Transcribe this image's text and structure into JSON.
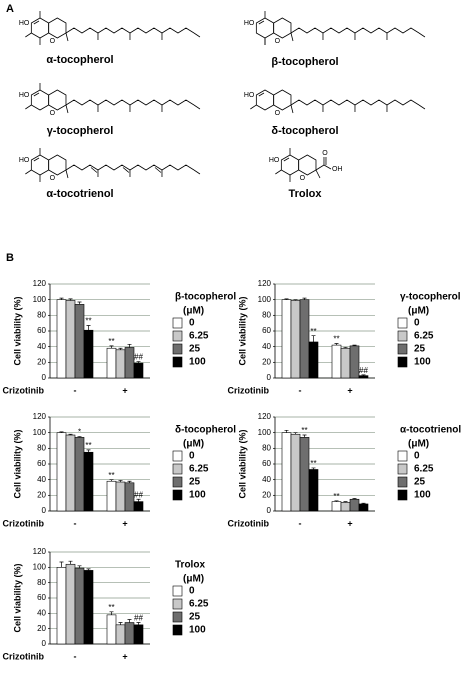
{
  "panel_labels": [
    "A",
    "B"
  ],
  "compounds": [
    {
      "label": "α-tocopherol",
      "atoms": [
        "HO",
        "O"
      ]
    },
    {
      "label": "β-tocopherol",
      "atoms": [
        "HO",
        "O"
      ]
    },
    {
      "label": "γ-tocopherol",
      "atoms": [
        "HO",
        "O"
      ]
    },
    {
      "label": "δ-tocopherol",
      "atoms": [
        "HO",
        "O"
      ]
    },
    {
      "label": "α-tocotrienol",
      "atoms": [
        "HO",
        "O"
      ]
    },
    {
      "label": "Trolox",
      "atoms": [
        "HO",
        "O",
        "O",
        "OH"
      ]
    }
  ],
  "chart_data": [
    {
      "type": "bar",
      "legend_title": "β-tocopherol",
      "legend_subtitle": "(μM)",
      "ylabel": "Cell viability (%)",
      "xlabel": "Crizotinib",
      "categories": [
        "-",
        "+"
      ],
      "ylim": [
        0,
        120
      ],
      "yticks": [
        0,
        20,
        40,
        60,
        80,
        100,
        120
      ],
      "grid": true,
      "series": [
        {
          "name": "0",
          "color": "#ffffff",
          "values": [
            100,
            38
          ],
          "errors": [
            2,
            3
          ],
          "annotations": [
            null,
            "**"
          ]
        },
        {
          "name": "6.25",
          "color": "#c8c8c8",
          "values": [
            99,
            36
          ],
          "errors": [
            2,
            2
          ],
          "annotations": [
            null,
            null
          ]
        },
        {
          "name": "25",
          "color": "#6e6e6e",
          "values": [
            94,
            39
          ],
          "errors": [
            3,
            4
          ],
          "annotations": [
            null,
            null
          ]
        },
        {
          "name": "100",
          "color": "#000000",
          "values": [
            61,
            19
          ],
          "errors": [
            6,
            2
          ],
          "annotations": [
            "**",
            "##"
          ]
        }
      ]
    },
    {
      "type": "bar",
      "legend_title": "γ-tocopherol",
      "legend_subtitle": "(μM)",
      "ylabel": "Cell viability (%)",
      "xlabel": "Crizotinib",
      "categories": [
        "-",
        "+"
      ],
      "ylim": [
        0,
        120
      ],
      "yticks": [
        0,
        20,
        40,
        60,
        80,
        100,
        120
      ],
      "grid": true,
      "series": [
        {
          "name": "0",
          "color": "#ffffff",
          "values": [
            100,
            42
          ],
          "errors": [
            1,
            2
          ],
          "annotations": [
            null,
            "**"
          ]
        },
        {
          "name": "6.25",
          "color": "#c8c8c8",
          "values": [
            99,
            38
          ],
          "errors": [
            1,
            1
          ],
          "annotations": [
            null,
            null
          ]
        },
        {
          "name": "25",
          "color": "#6e6e6e",
          "values": [
            100,
            41
          ],
          "errors": [
            2,
            1
          ],
          "annotations": [
            null,
            null
          ]
        },
        {
          "name": "100",
          "color": "#000000",
          "values": [
            46,
            3
          ],
          "errors": [
            8,
            1
          ],
          "annotations": [
            "**",
            "##"
          ]
        }
      ]
    },
    {
      "type": "bar",
      "legend_title": "δ-tocopherol",
      "legend_subtitle": "(μM)",
      "ylabel": "Cell viability (%)",
      "xlabel": "Crizotinib",
      "categories": [
        "-",
        "+"
      ],
      "ylim": [
        0,
        120
      ],
      "yticks": [
        0,
        20,
        40,
        60,
        80,
        100,
        120
      ],
      "grid": true,
      "series": [
        {
          "name": "0",
          "color": "#ffffff",
          "values": [
            100,
            38
          ],
          "errors": [
            1,
            2
          ],
          "annotations": [
            null,
            "**"
          ]
        },
        {
          "name": "6.25",
          "color": "#c8c8c8",
          "values": [
            97,
            37
          ],
          "errors": [
            1,
            2
          ],
          "annotations": [
            null,
            null
          ]
        },
        {
          "name": "25",
          "color": "#6e6e6e",
          "values": [
            94,
            36
          ],
          "errors": [
            1,
            2
          ],
          "annotations": [
            "*",
            null
          ]
        },
        {
          "name": "100",
          "color": "#000000",
          "values": [
            75,
            12
          ],
          "errors": [
            3,
            3
          ],
          "annotations": [
            "**",
            "##"
          ]
        }
      ]
    },
    {
      "type": "bar",
      "legend_title": "α-tocotrienol",
      "legend_subtitle": "(μM)",
      "ylabel": "Cell viability (%)",
      "xlabel": "Crizotinib",
      "categories": [
        "-",
        "+"
      ],
      "ylim": [
        0,
        120
      ],
      "yticks": [
        0,
        20,
        40,
        60,
        80,
        100,
        120
      ],
      "grid": true,
      "series": [
        {
          "name": "0",
          "color": "#ffffff",
          "values": [
            100,
            12
          ],
          "errors": [
            3,
            1
          ],
          "annotations": [
            null,
            "**"
          ]
        },
        {
          "name": "6.25",
          "color": "#c8c8c8",
          "values": [
            98,
            11
          ],
          "errors": [
            2,
            1
          ],
          "annotations": [
            null,
            null
          ]
        },
        {
          "name": "25",
          "color": "#6e6e6e",
          "values": [
            94,
            15
          ],
          "errors": [
            3,
            1
          ],
          "annotations": [
            "**",
            null
          ]
        },
        {
          "name": "100",
          "color": "#000000",
          "values": [
            53,
            9
          ],
          "errors": [
            2,
            1
          ],
          "annotations": [
            "**",
            null
          ]
        }
      ]
    },
    {
      "type": "bar",
      "legend_title": "Trolox",
      "legend_subtitle": "(μM)",
      "ylabel": "Cell viability (%)",
      "xlabel": "Crizotinib",
      "categories": [
        "-",
        "+"
      ],
      "ylim": [
        0,
        120
      ],
      "yticks": [
        0,
        20,
        40,
        60,
        80,
        100,
        120
      ],
      "grid": true,
      "series": [
        {
          "name": "0",
          "color": "#ffffff",
          "values": [
            100,
            38
          ],
          "errors": [
            7,
            4
          ],
          "annotations": [
            null,
            "**"
          ]
        },
        {
          "name": "6.25",
          "color": "#c8c8c8",
          "values": [
            104,
            25
          ],
          "errors": [
            4,
            3
          ],
          "annotations": [
            null,
            null
          ]
        },
        {
          "name": "25",
          "color": "#6e6e6e",
          "values": [
            99,
            28
          ],
          "errors": [
            3,
            4
          ],
          "annotations": [
            null,
            null
          ]
        },
        {
          "name": "100",
          "color": "#000000",
          "values": [
            96,
            25
          ],
          "errors": [
            2,
            3
          ],
          "annotations": [
            null,
            "##"
          ]
        }
      ]
    }
  ]
}
